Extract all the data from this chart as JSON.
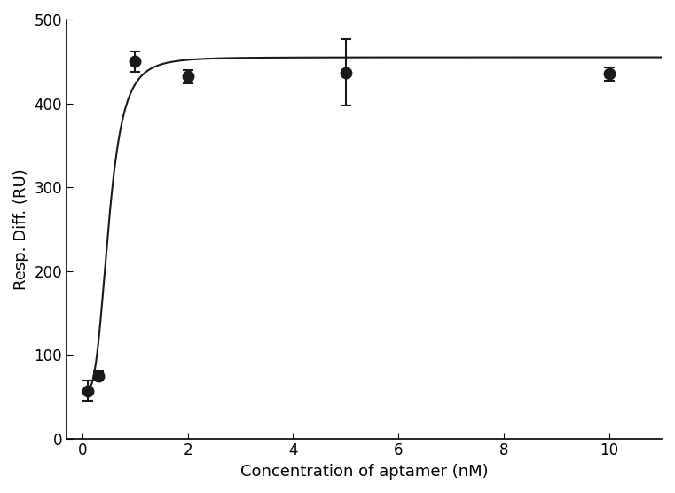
{
  "x_data": [
    0.1,
    0.3,
    1.0,
    2.0,
    5.0,
    10.0
  ],
  "y_data": [
    57,
    75,
    450,
    432,
    437,
    435
  ],
  "y_err": [
    12,
    6,
    12,
    8,
    40,
    8
  ],
  "xlabel": "Concentration of aptamer (nM)",
  "ylabel": "Resp. Diff. (RU)",
  "xlim": [
    -0.3,
    11
  ],
  "ylim": [
    0,
    500
  ],
  "yticks": [
    0,
    100,
    200,
    300,
    400,
    500
  ],
  "xticks": [
    0,
    2,
    4,
    6,
    8,
    10
  ],
  "marker_color": "#1a1a1a",
  "line_color": "#1a1a1a",
  "marker_size": 9,
  "background_color": "#ffffff",
  "figsize": [
    7.61,
    5.56
  ],
  "dpi": 100,
  "xlabel_fontsize": 13,
  "ylabel_fontsize": 13,
  "tick_fontsize": 12,
  "hill_Bmax": 400,
  "hill_Kd": 0.5,
  "hill_n": 3.5,
  "hill_y0": 55
}
